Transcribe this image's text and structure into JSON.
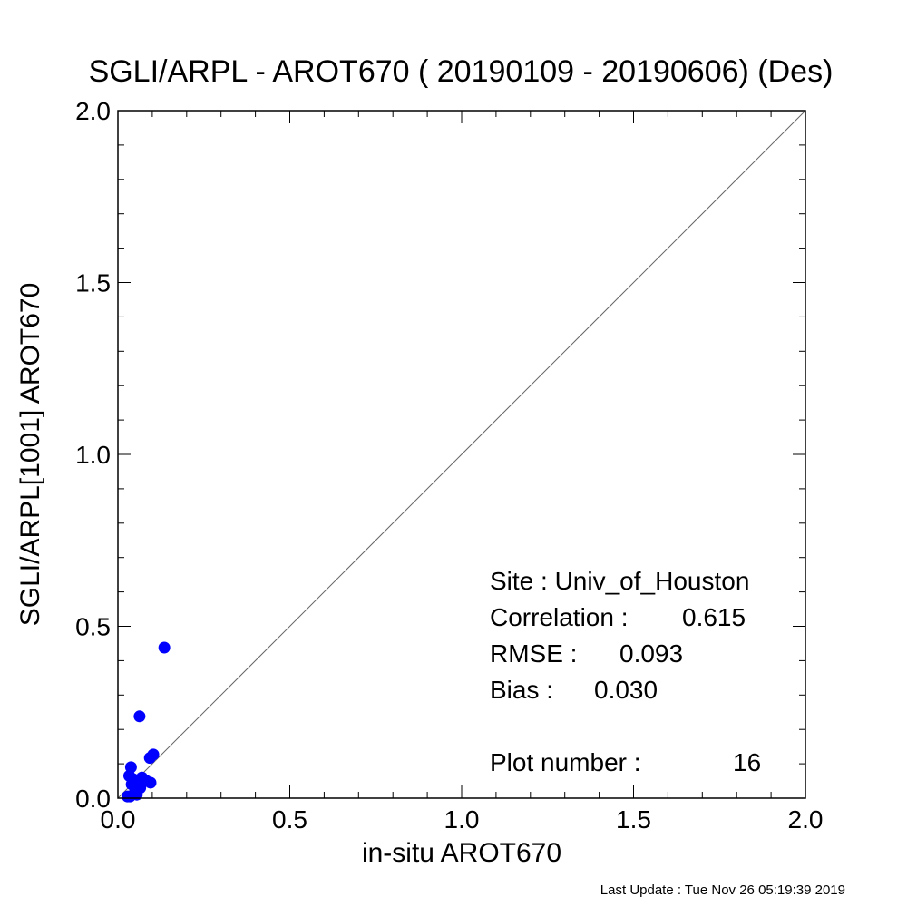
{
  "chart_data": {
    "type": "scatter",
    "title": "SGLI/ARPL - AROT670 ( 20190109 - 20190606) (Des)",
    "xlabel": "in-situ AROT670",
    "ylabel": "SGLI/ARPL[1001]    AROT670",
    "xlim": [
      0.0,
      2.0
    ],
    "ylim": [
      0.0,
      2.0
    ],
    "x_tick_labels": [
      "0.0",
      "0.5",
      "1.0",
      "1.5",
      "2.0"
    ],
    "y_tick_labels": [
      "0.0",
      "0.5",
      "1.0",
      "1.5",
      "2.0"
    ],
    "reference_line": "1:1",
    "grid": false,
    "point_color": "#0000ff",
    "points": [
      {
        "x": 0.135,
        "y": 0.438
      },
      {
        "x": 0.063,
        "y": 0.238
      },
      {
        "x": 0.103,
        "y": 0.127
      },
      {
        "x": 0.093,
        "y": 0.117
      },
      {
        "x": 0.038,
        "y": 0.09
      },
      {
        "x": 0.033,
        "y": 0.065
      },
      {
        "x": 0.045,
        "y": 0.055
      },
      {
        "x": 0.07,
        "y": 0.06
      },
      {
        "x": 0.083,
        "y": 0.05
      },
      {
        "x": 0.095,
        "y": 0.045
      },
      {
        "x": 0.04,
        "y": 0.04
      },
      {
        "x": 0.065,
        "y": 0.03
      },
      {
        "x": 0.05,
        "y": 0.02
      },
      {
        "x": 0.028,
        "y": 0.005
      },
      {
        "x": 0.035,
        "y": 0.005
      },
      {
        "x": 0.055,
        "y": 0.01
      }
    ],
    "stats": {
      "site": "Site : Univ_of_Houston",
      "correlation_label": "Correlation :",
      "correlation_value": "0.615",
      "rmse_label": "RMSE :",
      "rmse_value": "0.093",
      "bias_label": "Bias :",
      "bias_value": "0.030",
      "plot_number_label": "Plot number :",
      "plot_number_value": "16"
    }
  },
  "footer": "Last Update : Tue Nov 26 05:19:39 2019"
}
